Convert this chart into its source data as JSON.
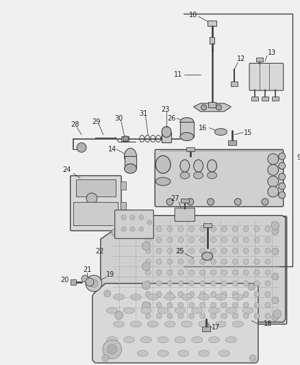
{
  "bg_color": "#f0f0f0",
  "line_color": "#404040",
  "text_color": "#222222",
  "figsize": [
    4.39,
    5.33
  ],
  "dpi": 100,
  "part_color": "#d8d8d8",
  "part_edge": "#404040",
  "hole_color": "#c0c0c0",
  "hole_edge": "#888888"
}
